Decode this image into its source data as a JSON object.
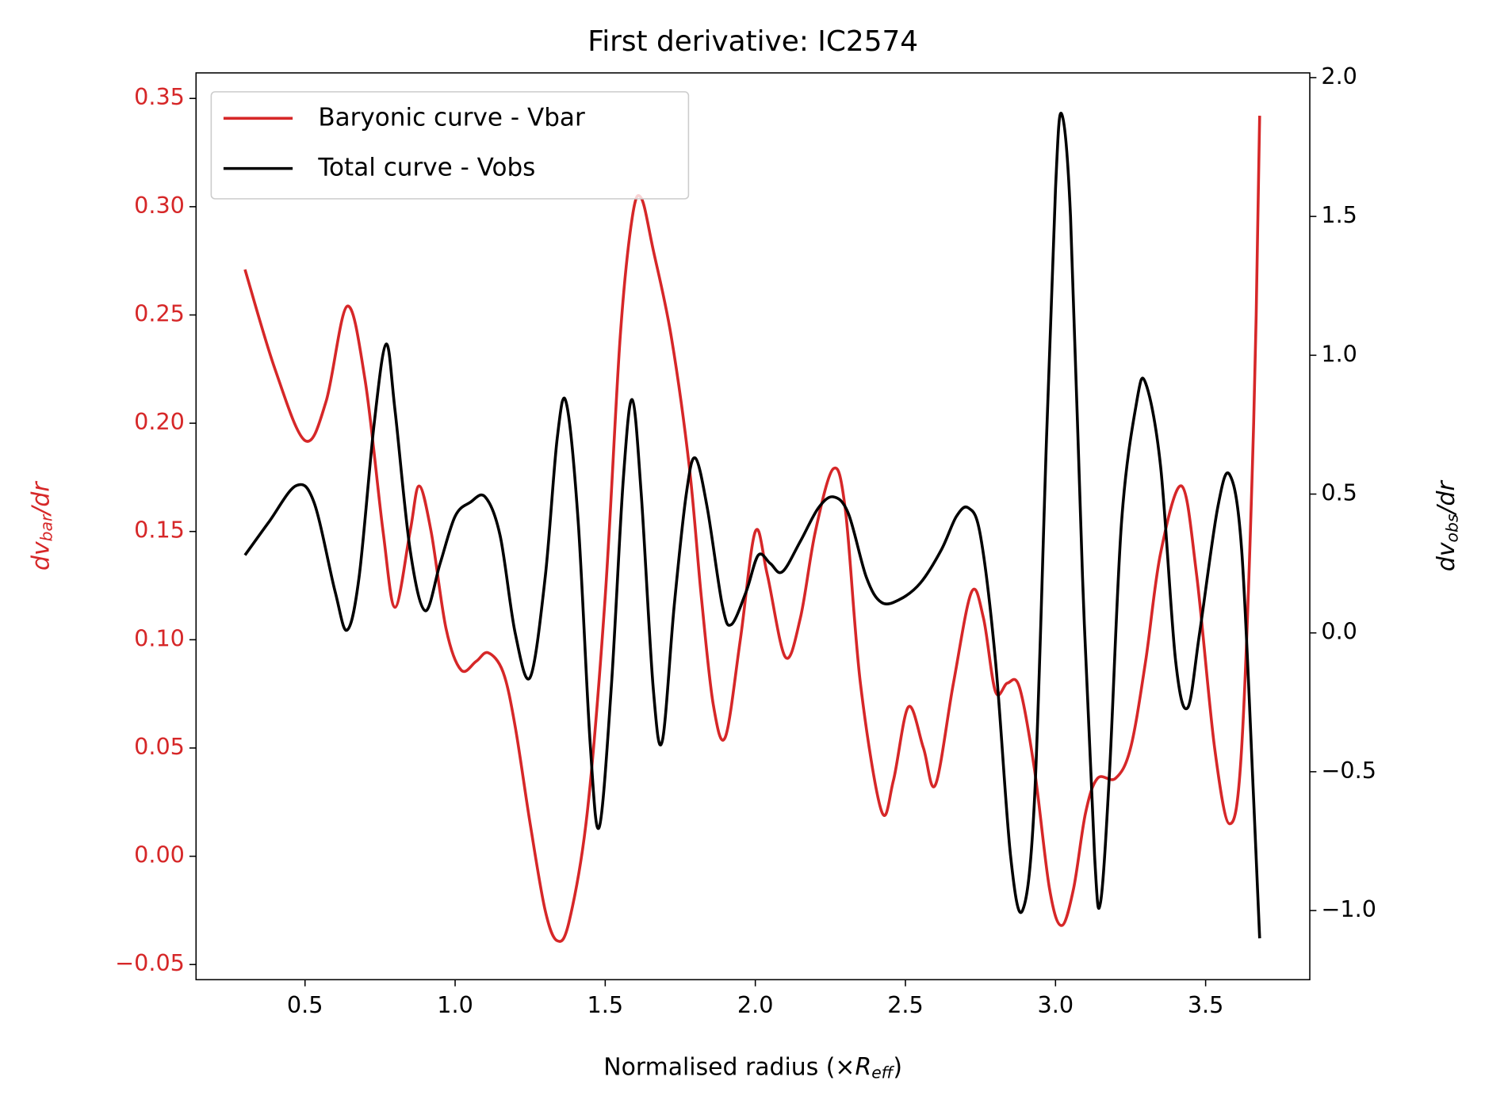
{
  "chart_data": {
    "type": "line",
    "title": "First derivative: IC2574",
    "xlabel": [
      "Normalised radius (×",
      "R",
      "eff",
      ")"
    ],
    "ylabel": [
      "dv",
      "bar",
      "/dr"
    ],
    "y2label": [
      "dv",
      "obs",
      "/dr"
    ],
    "xlim": [
      0.137,
      3.847
    ],
    "ylim": [
      -0.057,
      0.3618
    ],
    "y2lim": [
      -1.249,
      2.017
    ],
    "xticks": [
      {
        "value": 0.5,
        "label": "0.5"
      },
      {
        "value": 1.0,
        "label": "1.0"
      },
      {
        "value": 1.5,
        "label": "1.5"
      },
      {
        "value": 2.0,
        "label": "2.0"
      },
      {
        "value": 2.5,
        "label": "2.5"
      },
      {
        "value": 3.0,
        "label": "3.0"
      },
      {
        "value": 3.5,
        "label": "3.5"
      }
    ],
    "yticks": [
      {
        "value": -0.05,
        "label": "−0.05"
      },
      {
        "value": 0.0,
        "label": "0.00"
      },
      {
        "value": 0.05,
        "label": "0.05"
      },
      {
        "value": 0.1,
        "label": "0.10"
      },
      {
        "value": 0.15,
        "label": "0.15"
      },
      {
        "value": 0.2,
        "label": "0.20"
      },
      {
        "value": 0.25,
        "label": "0.25"
      },
      {
        "value": 0.3,
        "label": "0.30"
      },
      {
        "value": 0.35,
        "label": "0.35"
      }
    ],
    "y2ticks": [
      {
        "value": -1.0,
        "label": "−1.0"
      },
      {
        "value": -0.5,
        "label": "−0.5"
      },
      {
        "value": 0.0,
        "label": "0.0"
      },
      {
        "value": 0.5,
        "label": "0.5"
      },
      {
        "value": 1.0,
        "label": "1.0"
      },
      {
        "value": 1.5,
        "label": "1.5"
      },
      {
        "value": 2.0,
        "label": "2.0"
      }
    ],
    "legend": "upper left",
    "series": [
      {
        "name": "Baryonic curve - Vbar",
        "color": "#d62728",
        "x": [
          0.3,
          0.4,
          0.5,
          0.57,
          0.64,
          0.7,
          0.76,
          0.8,
          0.85,
          0.88,
          0.92,
          0.97,
          1.02,
          1.07,
          1.11,
          1.16,
          1.2,
          1.25,
          1.3,
          1.34,
          1.38,
          1.44,
          1.5,
          1.55,
          1.59,
          1.62,
          1.66,
          1.72,
          1.78,
          1.82,
          1.86,
          1.9,
          1.95,
          2.0,
          2.04,
          2.1,
          2.15,
          2.2,
          2.26,
          2.3,
          2.35,
          2.42,
          2.46,
          2.51,
          2.56,
          2.6,
          2.66,
          2.72,
          2.76,
          2.8,
          2.84,
          2.88,
          2.93,
          2.98,
          3.02,
          3.06,
          3.1,
          3.14,
          3.2,
          3.25,
          3.3,
          3.35,
          3.42,
          3.47,
          3.53,
          3.58,
          3.62,
          3.66,
          3.68
        ],
        "values": [
          0.271,
          0.225,
          0.192,
          0.21,
          0.254,
          0.22,
          0.15,
          0.115,
          0.15,
          0.171,
          0.15,
          0.105,
          0.086,
          0.09,
          0.094,
          0.085,
          0.06,
          0.015,
          -0.025,
          -0.039,
          -0.03,
          0.02,
          0.12,
          0.24,
          0.295,
          0.304,
          0.28,
          0.24,
          0.18,
          0.12,
          0.07,
          0.055,
          0.1,
          0.15,
          0.13,
          0.092,
          0.11,
          0.15,
          0.179,
          0.16,
          0.08,
          0.021,
          0.035,
          0.069,
          0.05,
          0.033,
          0.08,
          0.122,
          0.11,
          0.076,
          0.08,
          0.078,
          0.04,
          -0.015,
          -0.032,
          -0.015,
          0.02,
          0.036,
          0.036,
          0.05,
          0.09,
          0.14,
          0.171,
          0.13,
          0.05,
          0.015,
          0.05,
          0.2,
          0.342
        ]
      },
      {
        "name": "Total curve - Vobs",
        "color": "#000000",
        "axis": "y2",
        "x": [
          0.3,
          0.38,
          0.47,
          0.53,
          0.6,
          0.64,
          0.68,
          0.73,
          0.77,
          0.8,
          0.85,
          0.9,
          0.95,
          1.0,
          1.05,
          1.1,
          1.15,
          1.2,
          1.25,
          1.3,
          1.34,
          1.37,
          1.41,
          1.45,
          1.48,
          1.52,
          1.56,
          1.59,
          1.62,
          1.66,
          1.69,
          1.73,
          1.77,
          1.8,
          1.84,
          1.89,
          1.92,
          1.97,
          2.01,
          2.05,
          2.09,
          2.15,
          2.21,
          2.26,
          2.31,
          2.37,
          2.42,
          2.48,
          2.55,
          2.62,
          2.67,
          2.71,
          2.75,
          2.8,
          2.85,
          2.89,
          2.93,
          2.97,
          3.0,
          3.02,
          3.05,
          3.09,
          3.13,
          3.15,
          3.18,
          3.22,
          3.27,
          3.3,
          3.35,
          3.4,
          3.44,
          3.48,
          3.54,
          3.58,
          3.62,
          3.66,
          3.68
        ],
        "values": [
          0.28,
          0.4,
          0.53,
          0.47,
          0.15,
          0.01,
          0.2,
          0.75,
          1.04,
          0.8,
          0.3,
          0.08,
          0.25,
          0.42,
          0.47,
          0.49,
          0.35,
          0.0,
          -0.16,
          0.2,
          0.7,
          0.83,
          0.4,
          -0.4,
          -0.7,
          -0.2,
          0.55,
          0.84,
          0.5,
          -0.2,
          -0.39,
          0.1,
          0.5,
          0.63,
          0.45,
          0.1,
          0.03,
          0.15,
          0.28,
          0.25,
          0.22,
          0.33,
          0.45,
          0.49,
          0.43,
          0.2,
          0.11,
          0.12,
          0.18,
          0.3,
          0.42,
          0.45,
          0.35,
          -0.1,
          -0.8,
          -1.0,
          -0.6,
          0.7,
          1.6,
          1.87,
          1.5,
          0.2,
          -0.8,
          -0.97,
          -0.5,
          0.4,
          0.83,
          0.9,
          0.6,
          -0.1,
          -0.27,
          0.0,
          0.45,
          0.57,
          0.3,
          -0.6,
          -1.1
        ]
      }
    ]
  }
}
